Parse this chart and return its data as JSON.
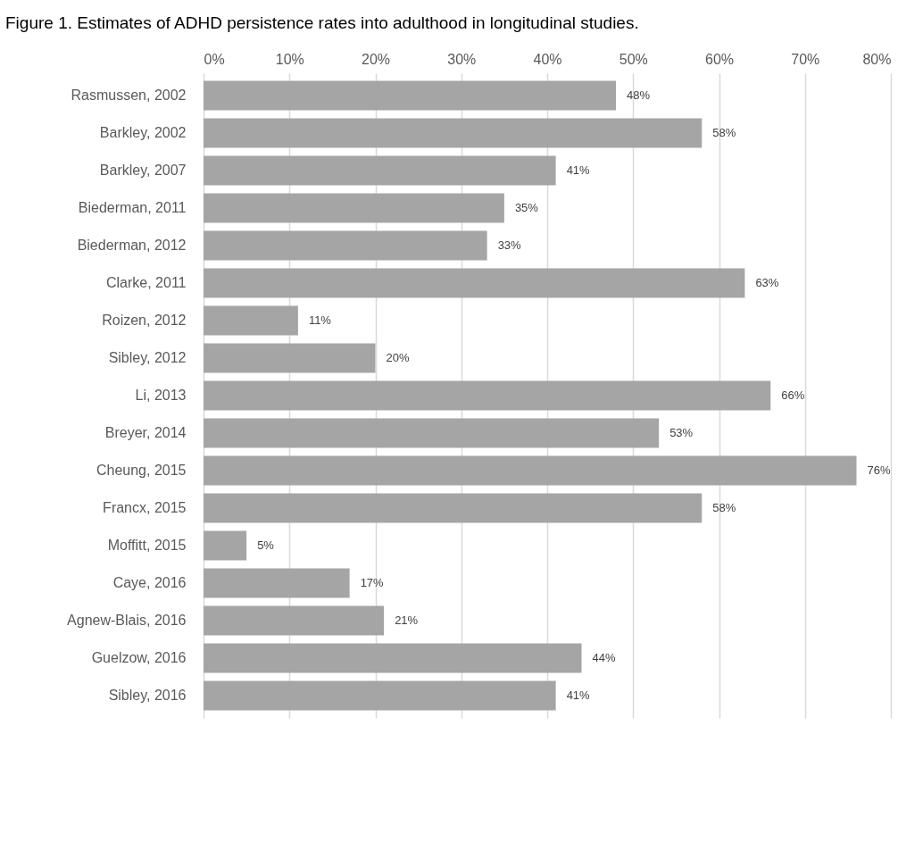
{
  "chart_data": {
    "type": "bar",
    "orientation": "horizontal",
    "title": "Figure 1. Estimates of ADHD persistence rates into adulthood in longitudinal studies.",
    "categories": [
      "Rasmussen, 2002",
      "Barkley, 2002",
      "Barkley, 2007",
      "Biederman, 2011",
      "Biederman, 2012",
      "Clarke, 2011",
      "Roizen, 2012",
      "Sibley, 2012",
      "Li, 2013",
      "Breyer, 2014",
      "Cheung, 2015",
      "Francx, 2015",
      "Moffitt, 2015",
      "Caye, 2016",
      "Agnew-Blais, 2016",
      "Guelzow, 2016",
      "Sibley, 2016"
    ],
    "values": [
      48,
      58,
      41,
      35,
      33,
      63,
      11,
      20,
      66,
      53,
      76,
      58,
      5,
      17,
      21,
      44,
      41
    ],
    "value_labels": [
      "48%",
      "58%",
      "41%",
      "35%",
      "33%",
      "63%",
      "11%",
      "20%",
      "66%",
      "53%",
      "76%",
      "58%",
      "5%",
      "17%",
      "21%",
      "44%",
      "41%"
    ],
    "color": "#a5a5a5",
    "xlim": [
      0,
      80
    ],
    "xticks": [
      {
        "value": 0,
        "label": "0%"
      },
      {
        "value": 10,
        "label": "10%"
      },
      {
        "value": 20,
        "label": "20%"
      },
      {
        "value": 30,
        "label": "30%"
      },
      {
        "value": 40,
        "label": "40%"
      },
      {
        "value": 50,
        "label": "50%"
      },
      {
        "value": 60,
        "label": "60%"
      },
      {
        "value": 70,
        "label": "70%"
      },
      {
        "value": 80,
        "label": "80%"
      }
    ],
    "grid": "x"
  }
}
